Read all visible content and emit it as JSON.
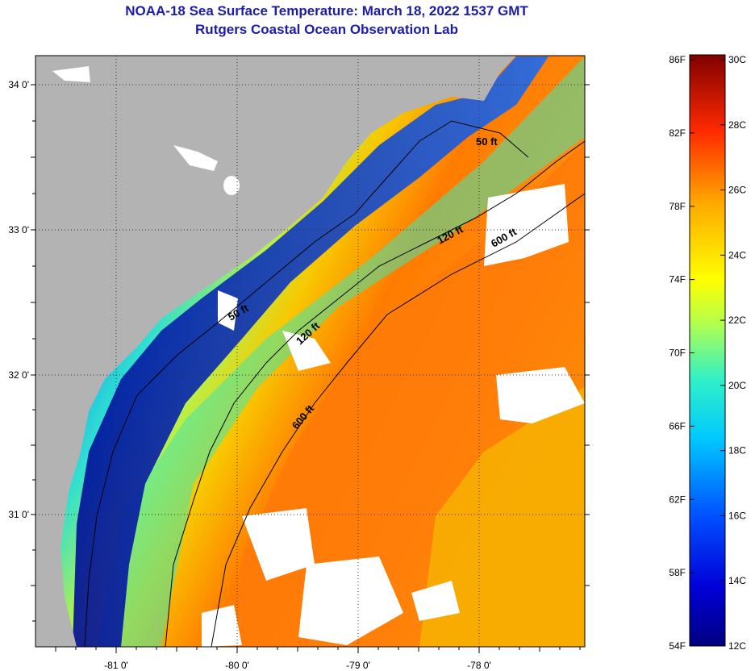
{
  "title": {
    "line1": "NOAA-18 Sea Surface Temperature:  March 18, 2022 1537 GMT",
    "line2": "Rutgers Coastal Ocean Observation Lab"
  },
  "map": {
    "lon_ticks": [
      "-81 0'",
      "-80 0'",
      "-79 0'",
      "-78 0'"
    ],
    "lat_ticks": [
      "34 0'",
      "33 0'",
      "32 0'",
      "31 0'"
    ],
    "contour_labels": {
      "c50_north": "50 ft",
      "c50_south": "50 ft",
      "c120_north": "120 ft",
      "c120_south": "120 ft",
      "c600_north": "600 ft",
      "c600_south": "600 ft"
    },
    "colors": {
      "land": "#b3b3b3",
      "cloud": "#ffffff",
      "cold": "#00148c",
      "warm": "#ff6a00"
    }
  },
  "colorbar": {
    "fahrenheit_labels": [
      "86F",
      "82F",
      "78F",
      "74F",
      "70F",
      "66F",
      "62F",
      "58F",
      "54F"
    ],
    "celsius_labels": [
      "30C",
      "28C",
      "26C",
      "24C",
      "22C",
      "20C",
      "18C",
      "16C",
      "14C",
      "12C"
    ],
    "range_f": [
      54,
      86
    ],
    "range_c": [
      12,
      30
    ]
  }
}
